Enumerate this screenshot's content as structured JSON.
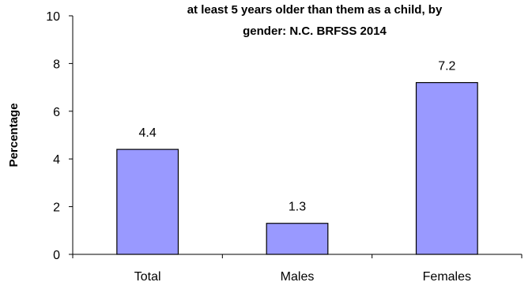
{
  "chart_data": {
    "type": "bar",
    "title_lines": [
      "at least 5 years older than them as a child, by",
      "gender: N.C. BRFSS 2014"
    ],
    "xlabel": "",
    "ylabel": "Percentage",
    "categories": [
      "Total",
      "Males",
      "Females"
    ],
    "values": [
      4.4,
      1.3,
      7.2
    ],
    "data_labels": [
      "4.4",
      "1.3",
      "7.2"
    ],
    "ylim": [
      0,
      10
    ],
    "yticks": [
      0,
      2,
      4,
      6,
      8,
      10
    ],
    "grid": false,
    "legend": "none",
    "bar_color": "#9999ff",
    "bar_stroke": "#000000"
  }
}
